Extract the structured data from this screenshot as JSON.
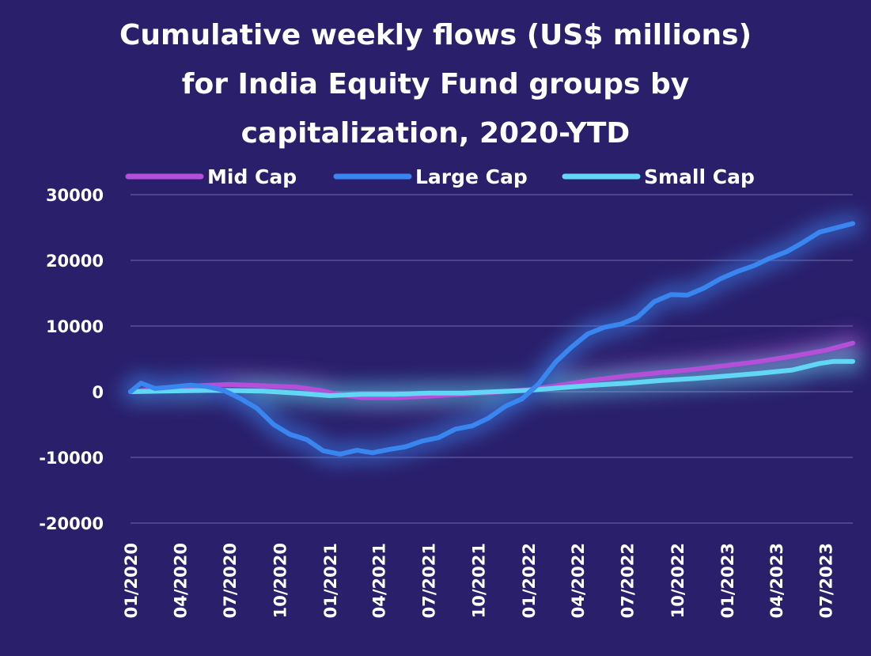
{
  "chart_data": {
    "type": "line",
    "title_lines": [
      "Cumulative weekly flows (US$ millions)",
      "for India Equity Fund groups by",
      "capitalization, 2020-YTD"
    ],
    "xlabel": "",
    "ylabel": "",
    "ylim": [
      -20000,
      30000
    ],
    "yticks": [
      30000,
      20000,
      10000,
      0,
      -10000,
      -20000
    ],
    "ytick_labels": [
      "30000",
      "20000",
      "10000",
      "0",
      "-10000",
      "-20000"
    ],
    "xlim": [
      "2020-01",
      "2023-08"
    ],
    "xticks": [
      "2020-01",
      "2020-04",
      "2020-07",
      "2020-10",
      "2021-01",
      "2021-04",
      "2021-07",
      "2021-10",
      "2022-01",
      "2022-04",
      "2022-07",
      "2022-10",
      "2023-01",
      "2023-04",
      "2023-07"
    ],
    "xtick_labels": [
      "01/2020",
      "04/2020",
      "07/2020",
      "10/2020",
      "01/2021",
      "04/2021",
      "07/2021",
      "10/2021",
      "01/2022",
      "04/2022",
      "07/2022",
      "10/2022",
      "01/2023",
      "04/2023",
      "07/2023"
    ],
    "grid": true,
    "legend_position": "top",
    "series": [
      {
        "name": "Mid Cap",
        "color": "#b44fd9",
        "points": [
          [
            "2020-01-01",
            0
          ],
          [
            "2020-03-01",
            500
          ],
          [
            "2020-05-01",
            900
          ],
          [
            "2020-07-01",
            1100
          ],
          [
            "2020-09-01",
            900
          ],
          [
            "2020-11-01",
            700
          ],
          [
            "2020-12-15",
            200
          ],
          [
            "2021-01-15",
            -400
          ],
          [
            "2021-03-01",
            -900
          ],
          [
            "2021-05-01",
            -900
          ],
          [
            "2021-07-01",
            -700
          ],
          [
            "2021-09-01",
            -400
          ],
          [
            "2021-11-01",
            -100
          ],
          [
            "2022-01-01",
            300
          ],
          [
            "2022-03-01",
            1000
          ],
          [
            "2022-05-01",
            1800
          ],
          [
            "2022-07-01",
            2400
          ],
          [
            "2022-09-01",
            2900
          ],
          [
            "2022-11-01",
            3400
          ],
          [
            "2023-01-01",
            4000
          ],
          [
            "2023-03-01",
            4600
          ],
          [
            "2023-05-01",
            5400
          ],
          [
            "2023-07-01",
            6300
          ],
          [
            "2023-08-20",
            7400
          ]
        ]
      },
      {
        "name": "Large Cap",
        "color": "#3a86f0",
        "points": [
          [
            "2020-01-01",
            0
          ],
          [
            "2020-01-20",
            1300
          ],
          [
            "2020-02-15",
            500
          ],
          [
            "2020-03-15",
            700
          ],
          [
            "2020-04-20",
            1000
          ],
          [
            "2020-05-20",
            800
          ],
          [
            "2020-06-20",
            200
          ],
          [
            "2020-07-20",
            -1000
          ],
          [
            "2020-08-20",
            -2500
          ],
          [
            "2020-09-20",
            -5000
          ],
          [
            "2020-10-20",
            -6500
          ],
          [
            "2020-11-20",
            -7300
          ],
          [
            "2020-12-20",
            -9000
          ],
          [
            "2021-01-20",
            -9500
          ],
          [
            "2021-02-20",
            -8900
          ],
          [
            "2021-03-20",
            -9300
          ],
          [
            "2021-04-20",
            -8800
          ],
          [
            "2021-05-20",
            -8400
          ],
          [
            "2021-06-20",
            -7500
          ],
          [
            "2021-07-20",
            -7000
          ],
          [
            "2021-08-20",
            -5700
          ],
          [
            "2021-09-20",
            -5200
          ],
          [
            "2021-10-20",
            -4000
          ],
          [
            "2021-11-20",
            -2200
          ],
          [
            "2021-12-20",
            -1100
          ],
          [
            "2022-01-20",
            1200
          ],
          [
            "2022-02-20",
            4500
          ],
          [
            "2022-03-20",
            6700
          ],
          [
            "2022-04-20",
            8800
          ],
          [
            "2022-05-20",
            9800
          ],
          [
            "2022-06-20",
            10300
          ],
          [
            "2022-07-20",
            11300
          ],
          [
            "2022-08-20",
            13700
          ],
          [
            "2022-09-20",
            14800
          ],
          [
            "2022-10-20",
            14700
          ],
          [
            "2022-11-20",
            15800
          ],
          [
            "2022-12-20",
            17200
          ],
          [
            "2023-01-20",
            18300
          ],
          [
            "2023-02-20",
            19200
          ],
          [
            "2023-03-20",
            20300
          ],
          [
            "2023-04-20",
            21300
          ],
          [
            "2023-05-20",
            22700
          ],
          [
            "2023-06-20",
            24300
          ],
          [
            "2023-08-20",
            25600
          ]
        ]
      },
      {
        "name": "Small Cap",
        "color": "#62d7f5",
        "points": [
          [
            "2020-01-01",
            0
          ],
          [
            "2020-03-01",
            100
          ],
          [
            "2020-06-01",
            200
          ],
          [
            "2020-09-01",
            100
          ],
          [
            "2020-11-01",
            -200
          ],
          [
            "2021-01-01",
            -600
          ],
          [
            "2021-03-01",
            -400
          ],
          [
            "2021-05-01",
            -400
          ],
          [
            "2021-07-01",
            -200
          ],
          [
            "2021-09-01",
            -200
          ],
          [
            "2021-11-01",
            0
          ],
          [
            "2022-01-01",
            200
          ],
          [
            "2022-03-01",
            600
          ],
          [
            "2022-05-01",
            1000
          ],
          [
            "2022-07-01",
            1300
          ],
          [
            "2022-09-01",
            1700
          ],
          [
            "2022-11-01",
            2000
          ],
          [
            "2023-01-01",
            2400
          ],
          [
            "2023-03-01",
            2800
          ],
          [
            "2023-05-01",
            3300
          ],
          [
            "2023-06-20",
            4300
          ],
          [
            "2023-07-15",
            4600
          ],
          [
            "2023-08-20",
            4600
          ]
        ]
      }
    ]
  }
}
